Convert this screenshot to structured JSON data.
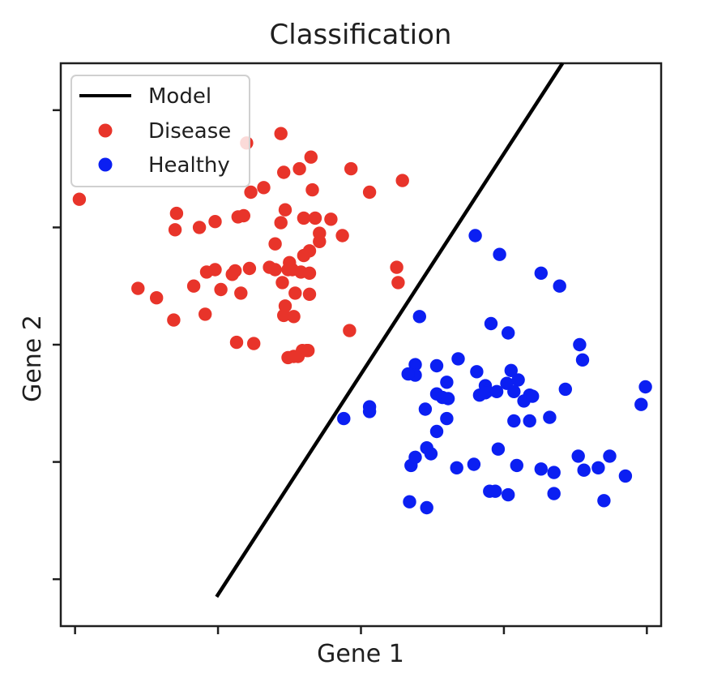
{
  "chart_data": {
    "type": "scatter",
    "title": "Classification",
    "xlabel": "Gene 1",
    "ylabel": "Gene 2",
    "xlim": [
      -2.1,
      2.1
    ],
    "ylim": [
      -2.4,
      2.4
    ],
    "xticks": [
      -2,
      -1,
      0,
      1,
      2
    ],
    "yticks": [
      -2,
      -1,
      0,
      1,
      2
    ],
    "tick_labels_shown": false,
    "legend_position": "top-left",
    "grid": false,
    "series": [
      {
        "name": "Model",
        "kind": "line",
        "color": "#000000",
        "points": [
          [
            -1.01,
            -2.15
          ],
          [
            1.41,
            2.4
          ]
        ]
      },
      {
        "name": "Disease",
        "kind": "scatter",
        "color": "#e8342a",
        "points": [
          [
            -1.97,
            1.24
          ],
          [
            -1.56,
            0.48
          ],
          [
            -1.3,
            0.98
          ],
          [
            -1.13,
            1.0
          ],
          [
            -0.86,
            1.09
          ],
          [
            -0.82,
            1.1
          ],
          [
            -0.6,
            0.86
          ],
          [
            -1.29,
            1.12
          ],
          [
            -0.56,
            1.04
          ],
          [
            -1.02,
            1.05
          ],
          [
            -0.68,
            1.34
          ],
          [
            -0.53,
            1.15
          ],
          [
            -1.43,
            0.4
          ],
          [
            -1.17,
            0.5
          ],
          [
            -0.98,
            0.47
          ],
          [
            -0.4,
            0.76
          ],
          [
            -0.55,
            0.53
          ],
          [
            -0.5,
            0.7
          ],
          [
            -0.54,
            1.47
          ],
          [
            -0.9,
            0.6
          ],
          [
            -1.02,
            0.64
          ],
          [
            -0.88,
            0.63
          ],
          [
            -0.78,
            0.65
          ],
          [
            -0.64,
            0.66
          ],
          [
            -0.6,
            0.64
          ],
          [
            -0.51,
            0.64
          ],
          [
            -0.36,
            0.8
          ],
          [
            -0.53,
            0.33
          ],
          [
            -1.08,
            0.62
          ],
          [
            -0.29,
            0.95
          ],
          [
            -0.84,
            0.44
          ],
          [
            -0.36,
            0.61
          ],
          [
            -0.48,
            0.64
          ],
          [
            -0.42,
            0.62
          ],
          [
            -0.29,
            0.88
          ],
          [
            -0.36,
            0.43
          ],
          [
            -0.54,
            0.25
          ],
          [
            -0.4,
            1.08
          ],
          [
            -0.32,
            1.08
          ],
          [
            -0.13,
            0.93
          ],
          [
            -0.21,
            1.07
          ],
          [
            -0.56,
            1.8
          ],
          [
            -0.35,
            1.6
          ],
          [
            -0.07,
            1.5
          ],
          [
            -0.43,
            1.5
          ],
          [
            -0.77,
            1.3
          ],
          [
            -0.34,
            1.32
          ],
          [
            0.06,
            1.3
          ],
          [
            0.29,
            1.4
          ],
          [
            -0.8,
            1.72
          ],
          [
            -1.09,
            0.26
          ],
          [
            -1.31,
            0.21
          ],
          [
            -0.75,
            0.01
          ],
          [
            -0.47,
            0.24
          ],
          [
            -0.46,
            0.44
          ],
          [
            -0.08,
            0.12
          ],
          [
            -0.41,
            -0.05
          ],
          [
            -0.47,
            -0.1
          ],
          [
            -0.51,
            -0.11
          ],
          [
            -0.38,
            -0.05
          ],
          [
            -0.44,
            -0.1
          ],
          [
            -0.37,
            -0.05
          ],
          [
            0.25,
            0.66
          ],
          [
            0.26,
            0.53
          ],
          [
            -0.87,
            0.02
          ]
        ]
      },
      {
        "name": "Healthy",
        "kind": "scatter",
        "color": "#0b1ff2",
        "points": [
          [
            0.8,
            0.93
          ],
          [
            0.97,
            0.77
          ],
          [
            1.26,
            0.61
          ],
          [
            1.39,
            0.5
          ],
          [
            0.41,
            0.24
          ],
          [
            0.91,
            0.18
          ],
          [
            1.03,
            0.1
          ],
          [
            1.53,
            0.0
          ],
          [
            1.55,
            -0.13
          ],
          [
            0.38,
            -0.17
          ],
          [
            0.38,
            -0.26
          ],
          [
            0.6,
            -0.32
          ],
          [
            0.53,
            -0.18
          ],
          [
            0.68,
            -0.12
          ],
          [
            0.81,
            -0.23
          ],
          [
            0.87,
            -0.35
          ],
          [
            0.88,
            -0.4
          ],
          [
            0.83,
            -0.43
          ],
          [
            1.05,
            -0.22
          ],
          [
            1.02,
            -0.33
          ],
          [
            1.1,
            -0.3
          ],
          [
            1.07,
            -0.4
          ],
          [
            1.18,
            -0.43
          ],
          [
            1.43,
            -0.38
          ],
          [
            1.99,
            -0.36
          ],
          [
            1.96,
            -0.51
          ],
          [
            0.33,
            -0.25
          ],
          [
            0.53,
            -0.42
          ],
          [
            0.57,
            -0.45
          ],
          [
            0.45,
            -0.55
          ],
          [
            0.46,
            -0.88
          ],
          [
            0.79,
            -1.02
          ],
          [
            0.96,
            -0.89
          ],
          [
            1.09,
            -1.03
          ],
          [
            1.26,
            -1.06
          ],
          [
            1.35,
            -1.09
          ],
          [
            1.56,
            -1.07
          ],
          [
            0.9,
            -1.25
          ],
          [
            0.94,
            -1.25
          ],
          [
            1.03,
            -1.28
          ],
          [
            1.35,
            -1.27
          ],
          [
            0.34,
            -1.34
          ],
          [
            0.46,
            -1.39
          ],
          [
            1.7,
            -1.33
          ],
          [
            0.06,
            -0.53
          ],
          [
            0.06,
            -0.57
          ],
          [
            -0.12,
            -0.63
          ],
          [
            0.53,
            -0.74
          ],
          [
            0.61,
            -0.46
          ],
          [
            1.07,
            -0.65
          ],
          [
            1.18,
            -0.65
          ],
          [
            0.35,
            -1.03
          ],
          [
            0.38,
            -0.96
          ],
          [
            0.49,
            -0.93
          ],
          [
            0.6,
            -0.63
          ],
          [
            0.87,
            -0.41
          ],
          [
            0.95,
            -0.4
          ],
          [
            1.14,
            -0.48
          ],
          [
            1.2,
            -0.44
          ],
          [
            1.32,
            -0.62
          ],
          [
            1.66,
            -1.05
          ],
          [
            1.74,
            -0.95
          ],
          [
            1.85,
            -1.12
          ],
          [
            1.52,
            -0.95
          ],
          [
            0.67,
            -1.05
          ]
        ]
      }
    ]
  }
}
